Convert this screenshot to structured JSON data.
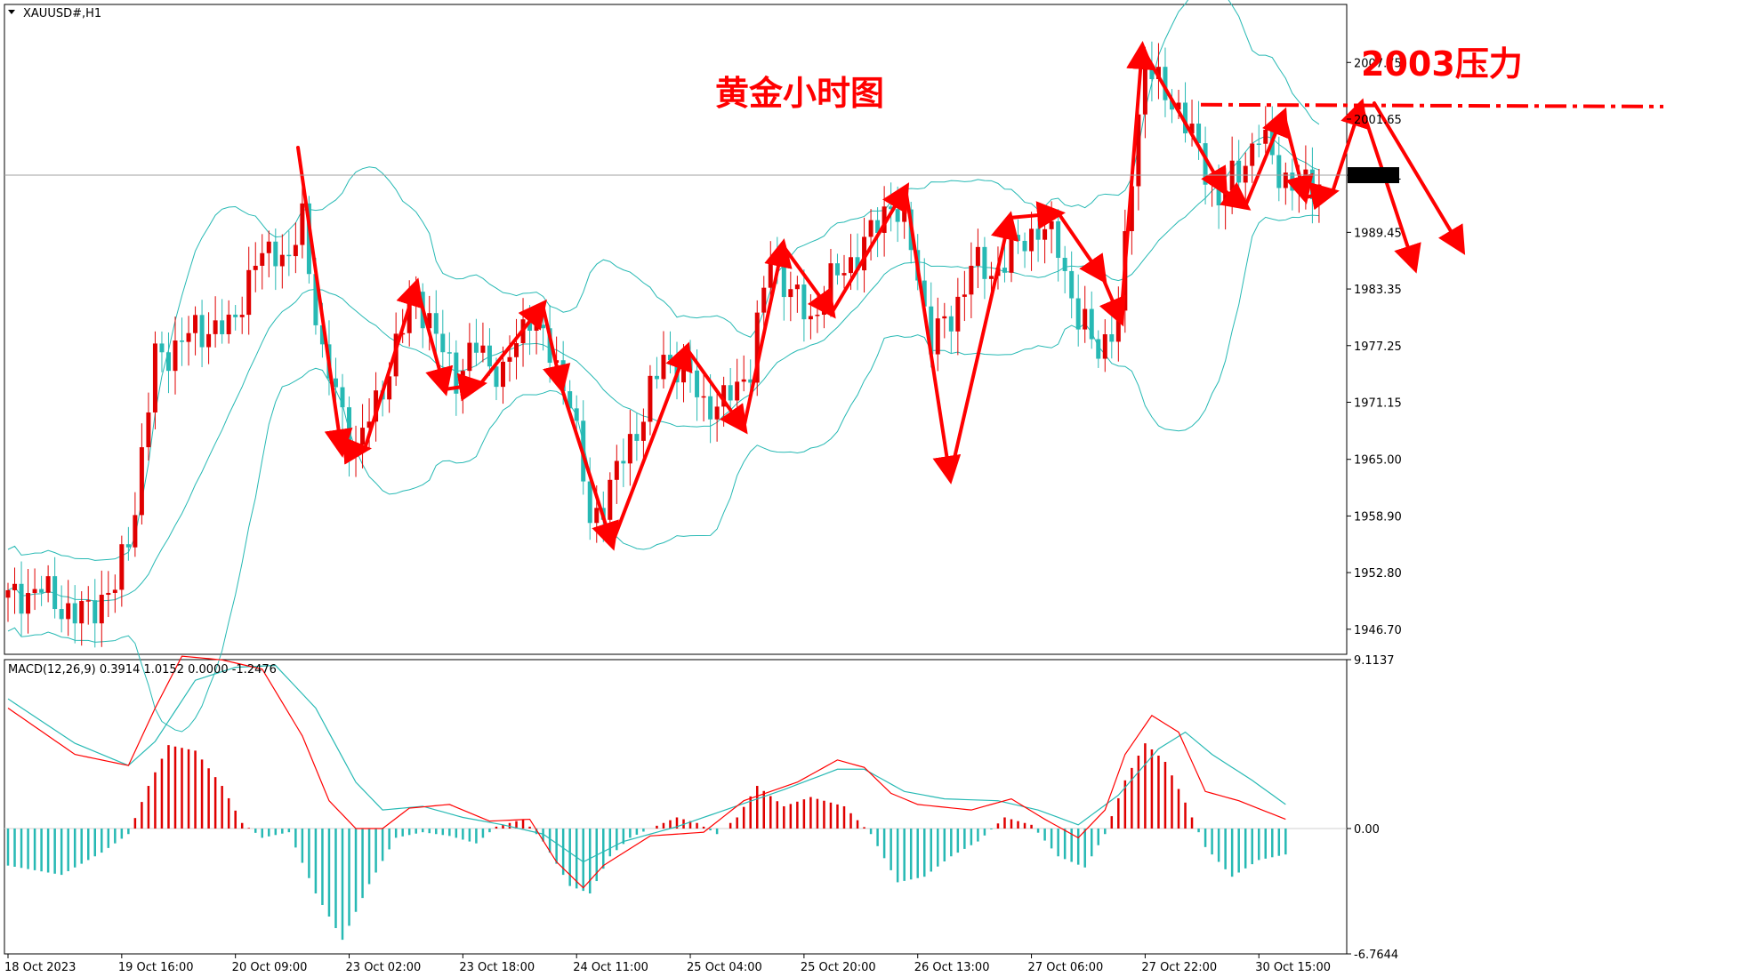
{
  "symbol_label": "XAUUSD#,H1",
  "overlay": {
    "title": "黄金小时图",
    "resistance_label": "2003压力"
  },
  "colors": {
    "bull": "#e00000",
    "bear": "#27b9b4",
    "bollinger": "#27b9b4",
    "macd_line": "#ff0000",
    "signal_line": "#27b9b4",
    "annotation": "#ff0000",
    "price_label_bg": "#000000"
  },
  "chart_data": [
    {
      "type": "candlestick",
      "title": "XAUUSD#,H1",
      "y_ticks": [
        2007.75,
        2001.65,
        1995.61,
        1989.45,
        1983.35,
        1977.25,
        1971.15,
        1965.0,
        1958.9,
        1952.8,
        1946.7
      ],
      "y_tick_labels": [
        "2007.75",
        "2001.65",
        "1995.61",
        "1989.45",
        "1983.35",
        "1977.25",
        "1971.15",
        "1965.00",
        "1958.90",
        "1952.80",
        "1946.70"
      ],
      "ylim": [
        1944.0,
        2014.0
      ],
      "current_price": 1995.61,
      "resistance_level": 2003,
      "x_ticks": [
        "18 Oct 2023",
        "19 Oct 16:00",
        "20 Oct 09:00",
        "23 Oct 02:00",
        "23 Oct 18:00",
        "24 Oct 11:00",
        "25 Oct 04:00",
        "25 Oct 20:00",
        "26 Oct 13:00",
        "27 Oct 06:00",
        "27 Oct 22:00",
        "30 Oct 15:00"
      ],
      "x_tick_bars": [
        0,
        17,
        34,
        51,
        68,
        85,
        102,
        119,
        136,
        153,
        170,
        187
      ],
      "bar_count": 200,
      "price_path": [
        [
          0,
          1950
        ],
        [
          5,
          1951
        ],
        [
          10,
          1948
        ],
        [
          16,
          1951
        ],
        [
          19,
          1960
        ],
        [
          22,
          1976
        ],
        [
          25,
          1977
        ],
        [
          28,
          1979
        ],
        [
          33,
          1979
        ],
        [
          37,
          1986
        ],
        [
          40,
          1988
        ],
        [
          42,
          1986
        ],
        [
          44,
          1991
        ],
        [
          47,
          1976
        ],
        [
          52,
          1966
        ],
        [
          55,
          1971
        ],
        [
          58,
          1977
        ],
        [
          61,
          1983
        ],
        [
          64,
          1978
        ],
        [
          67,
          1974
        ],
        [
          70,
          1977
        ],
        [
          74,
          1974
        ],
        [
          78,
          1981
        ],
        [
          81,
          1976
        ],
        [
          84,
          1972
        ],
        [
          87,
          1958
        ],
        [
          90,
          1962
        ],
        [
          95,
          1970
        ],
        [
          98,
          1976
        ],
        [
          101,
          1975
        ],
        [
          104,
          1971
        ],
        [
          107,
          1971
        ],
        [
          111,
          1975
        ],
        [
          114,
          1987
        ],
        [
          117,
          1983
        ],
        [
          120,
          1980
        ],
        [
          123,
          1984
        ],
        [
          128,
          1988
        ],
        [
          132,
          1993
        ],
        [
          135,
          1988
        ],
        [
          138,
          1978
        ],
        [
          141,
          1980
        ],
        [
          144,
          1986
        ],
        [
          147,
          1985
        ],
        [
          151,
          1988
        ],
        [
          154,
          1990
        ],
        [
          157,
          1988
        ],
        [
          160,
          1980
        ],
        [
          163,
          1977
        ],
        [
          166,
          1980
        ],
        [
          168,
          1996
        ],
        [
          170,
          2008
        ],
        [
          172,
          2005
        ],
        [
          175,
          2003
        ],
        [
          178,
          1998
        ],
        [
          181,
          1993
        ],
        [
          184,
          1996
        ],
        [
          187,
          2000
        ],
        [
          190,
          1996
        ],
        [
          193,
          1994
        ],
        [
          196,
          1995
        ]
      ]
    },
    {
      "type": "macd",
      "title": "MACD(12,26,9) 0.3914 1.0152 0.0000 -1.2476",
      "params": [
        12,
        26,
        9
      ],
      "values": [
        0.3914,
        1.0152,
        0.0,
        -1.2476
      ],
      "y_ticks": [
        9.1137,
        0.0,
        -6.7644
      ],
      "y_tick_labels": [
        "9.1137",
        "0.00",
        "-6.7644"
      ],
      "ylim": [
        -6.7644,
        9.1137
      ],
      "macd_path": [
        [
          0,
          6.5
        ],
        [
          10,
          4.0
        ],
        [
          18,
          3.4
        ],
        [
          22,
          6.5
        ],
        [
          26,
          9.3
        ],
        [
          32,
          9.1
        ],
        [
          38,
          8.6
        ],
        [
          44,
          5.0
        ],
        [
          48,
          1.5
        ],
        [
          52,
          0.0
        ],
        [
          56,
          0.0
        ],
        [
          60,
          1.1
        ],
        [
          66,
          1.3
        ],
        [
          72,
          0.4
        ],
        [
          78,
          0.5
        ],
        [
          82,
          -1.8
        ],
        [
          86,
          -3.2
        ],
        [
          89,
          -2.0
        ],
        [
          96,
          -0.4
        ],
        [
          104,
          -0.2
        ],
        [
          110,
          1.5
        ],
        [
          118,
          2.5
        ],
        [
          124,
          3.7
        ],
        [
          128,
          3.3
        ],
        [
          132,
          1.9
        ],
        [
          136,
          1.3
        ],
        [
          144,
          1.0
        ],
        [
          150,
          1.6
        ],
        [
          155,
          0.5
        ],
        [
          160,
          -0.5
        ],
        [
          164,
          1.0
        ],
        [
          167,
          4.0
        ],
        [
          171,
          6.1
        ],
        [
          175,
          5.2
        ],
        [
          179,
          2.0
        ],
        [
          184,
          1.5
        ],
        [
          191,
          0.5
        ]
      ],
      "signal_path": [
        [
          0,
          7.0
        ],
        [
          10,
          4.6
        ],
        [
          18,
          3.4
        ],
        [
          22,
          4.7
        ],
        [
          28,
          8.0
        ],
        [
          34,
          8.7
        ],
        [
          40,
          8.8
        ],
        [
          46,
          6.5
        ],
        [
          52,
          2.5
        ],
        [
          56,
          1.0
        ],
        [
          62,
          1.2
        ],
        [
          68,
          0.6
        ],
        [
          74,
          0.2
        ],
        [
          80,
          -0.3
        ],
        [
          86,
          -1.8
        ],
        [
          92,
          -0.7
        ],
        [
          100,
          0.1
        ],
        [
          108,
          1.1
        ],
        [
          116,
          2.1
        ],
        [
          124,
          3.2
        ],
        [
          128,
          3.2
        ],
        [
          134,
          2.0
        ],
        [
          140,
          1.6
        ],
        [
          148,
          1.5
        ],
        [
          154,
          1.0
        ],
        [
          160,
          0.2
        ],
        [
          166,
          1.8
        ],
        [
          172,
          4.3
        ],
        [
          176,
          5.2
        ],
        [
          180,
          4.0
        ],
        [
          186,
          2.6
        ],
        [
          191,
          1.3
        ]
      ],
      "histogram": [
        [
          0,
          -2.0
        ],
        [
          8,
          -2.5
        ],
        [
          14,
          -1.3
        ],
        [
          18,
          -0.3
        ],
        [
          21,
          2.3
        ],
        [
          24,
          4.5
        ],
        [
          28,
          4.2
        ],
        [
          32,
          2.3
        ],
        [
          35,
          0.3
        ],
        [
          38,
          -0.5
        ],
        [
          42,
          -0.2
        ],
        [
          46,
          -3.5
        ],
        [
          50,
          -6.0
        ],
        [
          54,
          -3.0
        ],
        [
          58,
          -0.5
        ],
        [
          62,
          -0.2
        ],
        [
          66,
          -0.4
        ],
        [
          70,
          -0.8
        ],
        [
          73,
          0.1
        ],
        [
          77,
          0.5
        ],
        [
          80,
          -0.7
        ],
        [
          84,
          -3.1
        ],
        [
          87,
          -3.5
        ],
        [
          90,
          -1.5
        ],
        [
          93,
          -0.5
        ],
        [
          96,
          0.0
        ],
        [
          100,
          0.6
        ],
        [
          103,
          0.3
        ],
        [
          106,
          -0.3
        ],
        [
          109,
          0.6
        ],
        [
          112,
          2.3
        ],
        [
          116,
          1.2
        ],
        [
          120,
          1.7
        ],
        [
          125,
          1.2
        ],
        [
          129,
          -0.3
        ],
        [
          133,
          -2.9
        ],
        [
          137,
          -2.6
        ],
        [
          141,
          -1.5
        ],
        [
          145,
          -0.7
        ],
        [
          149,
          0.6
        ],
        [
          153,
          0.2
        ],
        [
          157,
          -1.5
        ],
        [
          161,
          -2.1
        ],
        [
          164,
          -0.3
        ],
        [
          167,
          2.6
        ],
        [
          170,
          4.6
        ],
        [
          173,
          3.6
        ],
        [
          176,
          1.4
        ],
        [
          179,
          -1.0
        ],
        [
          183,
          -2.6
        ],
        [
          187,
          -1.7
        ],
        [
          191,
          -1.4
        ]
      ]
    }
  ]
}
